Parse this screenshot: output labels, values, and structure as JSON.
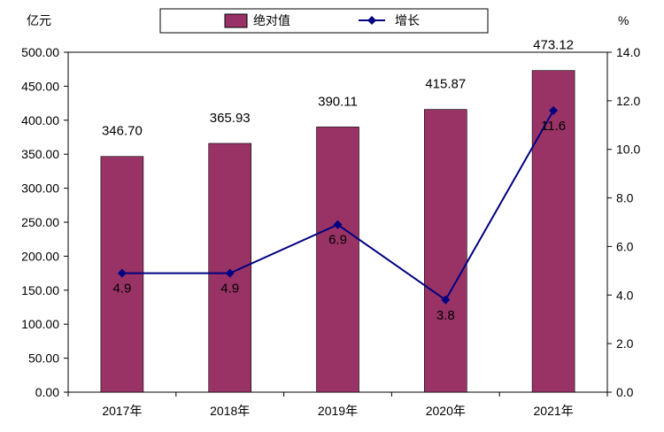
{
  "chart_data": {
    "type": "bar",
    "categories": [
      "2017年",
      "2018年",
      "2019年",
      "2020年",
      "2021年"
    ],
    "series": [
      {
        "name": "绝对值",
        "type": "bar",
        "axis": "left",
        "values": [
          346.7,
          365.93,
          390.11,
          415.87,
          473.12
        ],
        "labels": [
          "346.70",
          "365.93",
          "390.11",
          "415.87",
          "473.12"
        ]
      },
      {
        "name": "增长",
        "type": "line",
        "axis": "right",
        "values": [
          4.9,
          4.9,
          6.9,
          3.8,
          11.6
        ],
        "labels": [
          "4.9",
          "4.9",
          "6.9",
          "3.8",
          "11.6"
        ]
      }
    ],
    "y_left": {
      "unit_label": "亿元",
      "ylim": [
        0,
        500
      ],
      "ticks": [
        "0.00",
        "50.00",
        "100.00",
        "150.00",
        "200.00",
        "250.00",
        "300.00",
        "350.00",
        "400.00",
        "450.00",
        "500.00"
      ]
    },
    "y_right": {
      "unit_label": "%",
      "ylim": [
        0,
        14
      ],
      "ticks": [
        "0.0",
        "2.0",
        "4.0",
        "6.0",
        "8.0",
        "10.0",
        "12.0",
        "14.0"
      ]
    },
    "legend_placement": "top",
    "grid": false,
    "colors": {
      "bar": "#993366",
      "line": "#000080",
      "axis": "#000000"
    }
  }
}
